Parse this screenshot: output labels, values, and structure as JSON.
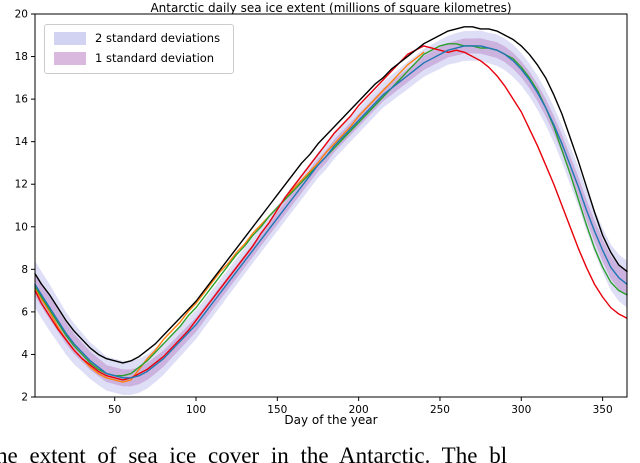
{
  "page": {
    "caption": "he extent of sea ice cover in the Antarctic. The bl"
  },
  "chart_data": {
    "type": "line",
    "title": "Antarctic daily sea ice extent (millions of square kilometres)",
    "xlabel": "Day of the year",
    "ylabel": "",
    "xlim": [
      1,
      365
    ],
    "ylim": [
      2,
      20
    ],
    "xticks": [
      50,
      100,
      150,
      200,
      250,
      300,
      350
    ],
    "yticks": [
      2,
      4,
      6,
      8,
      10,
      12,
      14,
      16,
      18,
      20
    ],
    "grid": false,
    "legend": {
      "position": "upper-left",
      "entries": [
        {
          "label": "2 standard deviations"
        },
        {
          "label": "1 standard deviation"
        }
      ]
    },
    "days": [
      1,
      5,
      10,
      15,
      20,
      25,
      30,
      35,
      40,
      45,
      50,
      55,
      60,
      65,
      70,
      75,
      80,
      85,
      90,
      95,
      100,
      105,
      110,
      115,
      120,
      125,
      130,
      135,
      140,
      145,
      150,
      155,
      160,
      165,
      170,
      175,
      180,
      185,
      190,
      195,
      200,
      205,
      210,
      215,
      220,
      225,
      230,
      235,
      240,
      245,
      250,
      255,
      260,
      265,
      270,
      275,
      280,
      285,
      290,
      295,
      300,
      305,
      310,
      315,
      320,
      325,
      330,
      335,
      340,
      345,
      350,
      355,
      360,
      365
    ],
    "band_center": "climatological-mean",
    "std": [
      0.55,
      0.55,
      0.55,
      0.52,
      0.5,
      0.48,
      0.45,
      0.43,
      0.42,
      0.4,
      0.4,
      0.4,
      0.4,
      0.4,
      0.4,
      0.4,
      0.38,
      0.37,
      0.36,
      0.35,
      0.34,
      0.33,
      0.32,
      0.32,
      0.31,
      0.31,
      0.3,
      0.3,
      0.3,
      0.3,
      0.3,
      0.3,
      0.3,
      0.3,
      0.3,
      0.3,
      0.3,
      0.3,
      0.3,
      0.3,
      0.3,
      0.3,
      0.3,
      0.3,
      0.31,
      0.31,
      0.32,
      0.32,
      0.33,
      0.33,
      0.34,
      0.34,
      0.35,
      0.35,
      0.35,
      0.36,
      0.36,
      0.37,
      0.37,
      0.38,
      0.38,
      0.39,
      0.4,
      0.41,
      0.42,
      0.43,
      0.45,
      0.46,
      0.48,
      0.5,
      0.52,
      0.54,
      0.55,
      0.55
    ],
    "bands": [
      {
        "label": "2 standard deviations",
        "multiplier": 2,
        "color": "#8888e0",
        "opacity": 0.28
      },
      {
        "label": "1 standard deviation",
        "multiplier": 1,
        "color": "#b06cb8",
        "opacity": 0.38
      }
    ],
    "series": [
      {
        "id": "year-orange",
        "color": "#ff7f0e",
        "days": [
          1,
          5,
          10,
          15,
          20,
          25,
          30,
          35,
          40,
          45,
          50,
          55,
          60,
          65,
          70,
          75,
          80,
          85,
          90,
          95,
          100,
          105,
          110,
          115,
          120,
          125,
          130,
          135,
          140,
          145,
          150,
          155,
          160,
          165,
          170,
          175,
          180,
          185,
          190,
          195,
          200,
          205,
          210,
          215,
          220,
          225,
          230,
          235,
          240
        ],
        "values": [
          7.1,
          6.6,
          6.0,
          5.3,
          4.7,
          4.2,
          3.8,
          3.4,
          3.1,
          2.9,
          2.8,
          2.7,
          2.8,
          3.3,
          3.8,
          4.2,
          4.7,
          5.1,
          5.5,
          6.0,
          6.4,
          6.9,
          7.4,
          7.9,
          8.3,
          8.8,
          9.2,
          9.7,
          10.1,
          10.5,
          10.9,
          11.3,
          11.8,
          12.2,
          12.6,
          13.0,
          13.5,
          13.9,
          14.3,
          14.7,
          15.2,
          15.6,
          16.0,
          16.4,
          16.8,
          17.2,
          17.6,
          17.9,
          18.2
        ]
      },
      {
        "id": "year-green",
        "color": "#2ca02c",
        "values": [
          7.2,
          6.7,
          6.1,
          5.5,
          4.9,
          4.4,
          4.0,
          3.6,
          3.3,
          3.1,
          3.0,
          3.0,
          3.1,
          3.4,
          3.7,
          4.1,
          4.5,
          4.9,
          5.3,
          5.8,
          6.2,
          6.7,
          7.2,
          7.7,
          8.2,
          8.7,
          9.1,
          9.6,
          10.0,
          10.5,
          10.9,
          11.3,
          11.7,
          12.1,
          12.5,
          12.9,
          13.3,
          13.7,
          14.1,
          14.5,
          14.9,
          15.3,
          15.7,
          16.1,
          16.5,
          16.9,
          17.3,
          17.7,
          18.1,
          18.3,
          18.5,
          18.6,
          18.6,
          18.5,
          18.5,
          18.4,
          18.4,
          18.3,
          18.1,
          17.9,
          17.5,
          17.0,
          16.4,
          15.6,
          14.7,
          13.6,
          12.5,
          11.3,
          10.1,
          9.0,
          8.1,
          7.4,
          7.0,
          6.8
        ]
      },
      {
        "id": "year-red",
        "color": "#e8000b",
        "values": [
          7.0,
          6.4,
          5.8,
          5.2,
          4.7,
          4.2,
          3.8,
          3.5,
          3.2,
          3.0,
          2.9,
          2.8,
          2.9,
          3.1,
          3.3,
          3.6,
          3.9,
          4.3,
          4.7,
          5.1,
          5.6,
          6.1,
          6.6,
          7.1,
          7.6,
          8.1,
          8.6,
          9.1,
          9.7,
          10.2,
          10.8,
          11.4,
          11.9,
          12.4,
          12.9,
          13.4,
          13.9,
          14.4,
          14.8,
          15.2,
          15.7,
          16.1,
          16.5,
          16.9,
          17.3,
          17.7,
          18.1,
          18.3,
          18.5,
          18.4,
          18.3,
          18.2,
          18.3,
          18.2,
          18.0,
          17.8,
          17.5,
          17.1,
          16.6,
          16.0,
          15.4,
          14.6,
          13.8,
          12.9,
          12.0,
          11.0,
          10.0,
          9.0,
          8.1,
          7.3,
          6.7,
          6.2,
          5.9,
          5.7
        ]
      },
      {
        "id": "climatological-mean",
        "color": "#1f77b4",
        "values": [
          7.3,
          6.8,
          6.2,
          5.6,
          5.0,
          4.5,
          4.1,
          3.7,
          3.4,
          3.1,
          3.0,
          2.9,
          2.9,
          3.0,
          3.2,
          3.5,
          3.8,
          4.2,
          4.6,
          5.0,
          5.4,
          5.9,
          6.4,
          6.9,
          7.4,
          7.9,
          8.4,
          8.9,
          9.4,
          9.9,
          10.4,
          10.9,
          11.4,
          11.9,
          12.4,
          12.9,
          13.3,
          13.8,
          14.2,
          14.6,
          15.0,
          15.4,
          15.8,
          16.2,
          16.5,
          16.8,
          17.1,
          17.4,
          17.7,
          17.9,
          18.1,
          18.3,
          18.4,
          18.5,
          18.5,
          18.5,
          18.4,
          18.3,
          18.1,
          17.8,
          17.4,
          16.9,
          16.3,
          15.6,
          14.8,
          13.9,
          12.9,
          11.9,
          10.8,
          9.8,
          8.9,
          8.1,
          7.6,
          7.3
        ]
      },
      {
        "id": "upper-envelope",
        "color": "#000000",
        "values": [
          7.8,
          7.3,
          6.8,
          6.2,
          5.6,
          5.1,
          4.7,
          4.3,
          4.0,
          3.8,
          3.7,
          3.6,
          3.7,
          3.9,
          4.2,
          4.5,
          4.9,
          5.3,
          5.7,
          6.1,
          6.5,
          7.0,
          7.5,
          8.0,
          8.5,
          9.0,
          9.5,
          10.0,
          10.5,
          11.0,
          11.5,
          12.0,
          12.5,
          13.0,
          13.4,
          13.9,
          14.3,
          14.7,
          15.1,
          15.5,
          15.9,
          16.3,
          16.7,
          17.0,
          17.4,
          17.7,
          18.0,
          18.3,
          18.6,
          18.8,
          19.0,
          19.2,
          19.3,
          19.4,
          19.4,
          19.3,
          19.3,
          19.2,
          19.0,
          18.8,
          18.5,
          18.1,
          17.6,
          17.0,
          16.2,
          15.3,
          14.2,
          13.1,
          11.9,
          10.7,
          9.6,
          8.8,
          8.2,
          7.9
        ]
      }
    ]
  }
}
